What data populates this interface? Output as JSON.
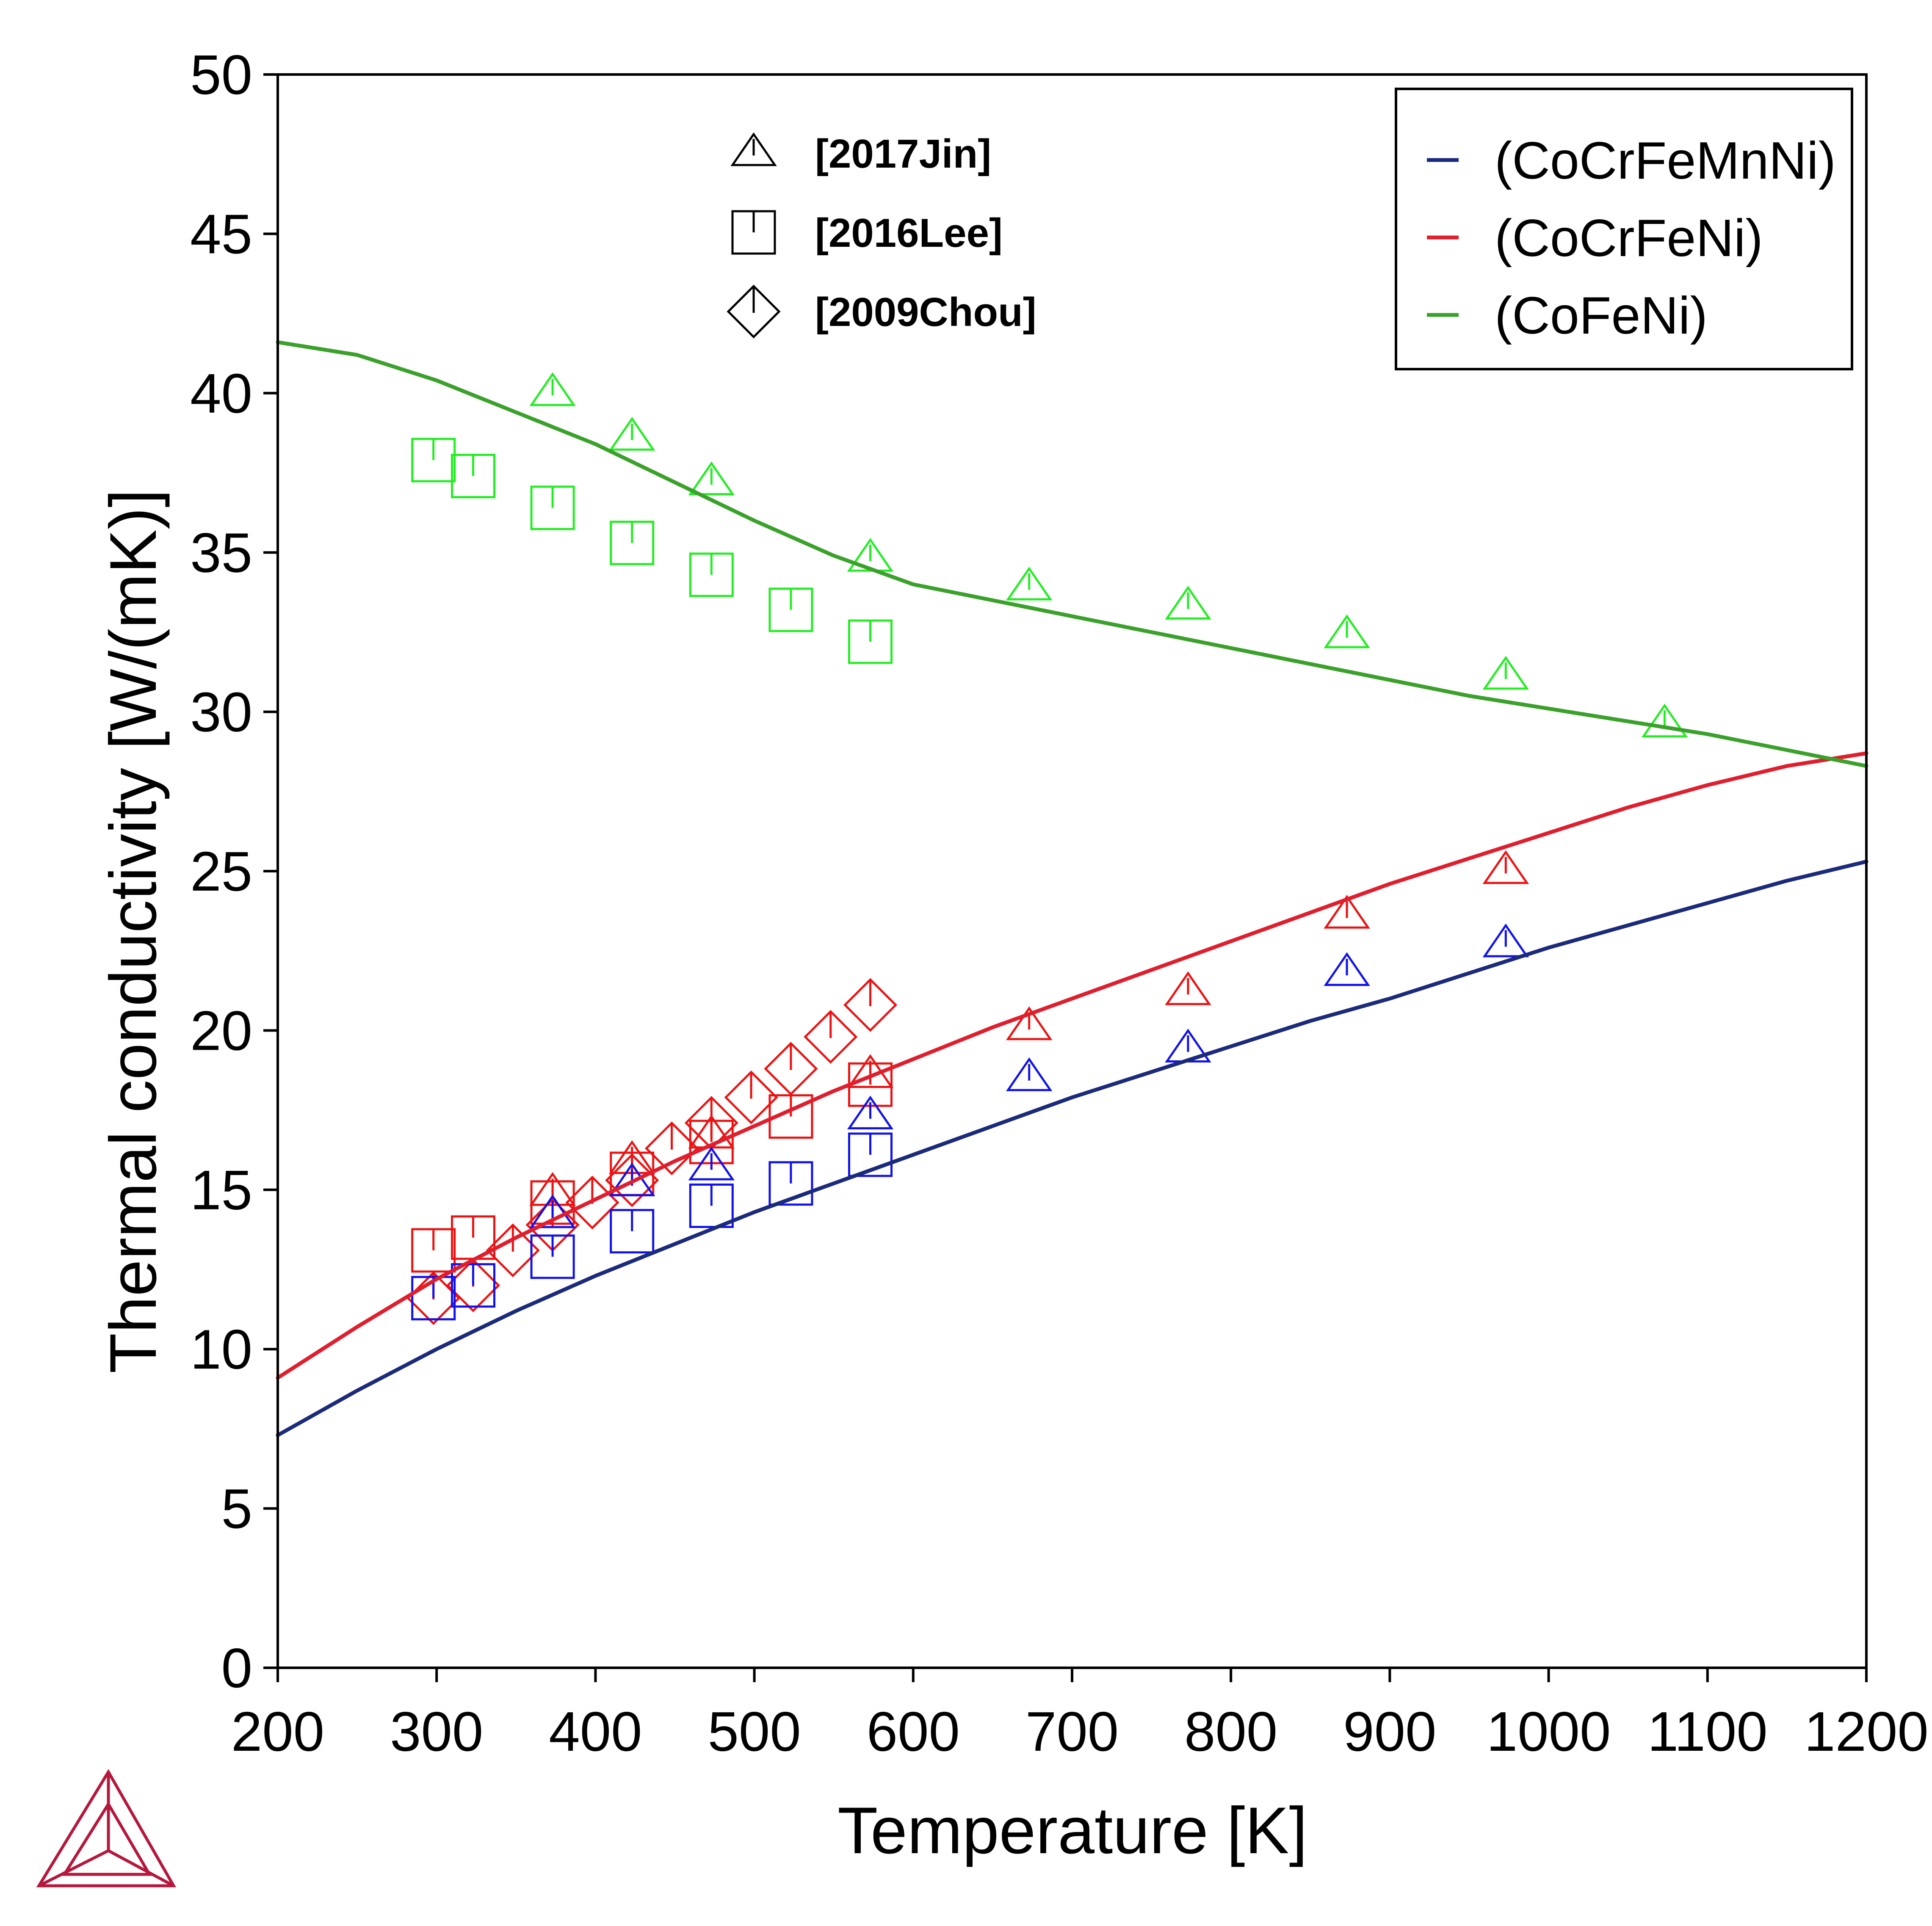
{
  "chart_data": {
    "type": "line",
    "xlabel": "Temperature [K]",
    "ylabel": "Thermal conductivity [W/(mK)]",
    "xlim": [
      200,
      1200
    ],
    "ylim": [
      0,
      50
    ],
    "x_ticks": [
      200,
      300,
      400,
      500,
      600,
      700,
      800,
      900,
      1000,
      1100,
      1200
    ],
    "y_ticks": [
      0,
      5,
      10,
      15,
      20,
      25,
      30,
      35,
      40,
      45,
      50
    ],
    "grid": false,
    "legend_position": "top-right",
    "series": [
      {
        "name": "(CoCrFeMnNi)",
        "color": "#1b2a7a",
        "x": [
          200,
          250,
          300,
          350,
          400,
          450,
          500,
          550,
          600,
          650,
          700,
          750,
          800,
          850,
          900,
          950,
          1000,
          1050,
          1100,
          1150,
          1200
        ],
        "y": [
          7.3,
          8.7,
          10.0,
          11.2,
          12.3,
          13.3,
          14.3,
          15.2,
          16.1,
          17.0,
          17.9,
          18.7,
          19.5,
          20.3,
          21.0,
          21.8,
          22.6,
          23.3,
          24.0,
          24.7,
          25.3
        ]
      },
      {
        "name": "(CoCrFeNi)",
        "color": "#e01e2d",
        "x": [
          200,
          250,
          300,
          350,
          400,
          450,
          500,
          550,
          600,
          650,
          700,
          750,
          800,
          850,
          900,
          950,
          1000,
          1050,
          1100,
          1150,
          1200
        ],
        "y": [
          9.1,
          10.7,
          12.2,
          13.5,
          14.7,
          15.9,
          17.0,
          18.1,
          19.1,
          20.1,
          21.0,
          21.9,
          22.8,
          23.7,
          24.6,
          25.4,
          26.2,
          27.0,
          27.7,
          28.3,
          28.7
        ]
      },
      {
        "name": "(CoFeNi)",
        "color": "#3aa12a",
        "x": [
          200,
          250,
          300,
          350,
          400,
          450,
          500,
          550,
          600,
          650,
          700,
          750,
          800,
          850,
          900,
          950,
          1000,
          1050,
          1100,
          1150,
          1200
        ],
        "y": [
          41.6,
          41.2,
          40.4,
          39.4,
          38.4,
          37.2,
          36.0,
          34.9,
          34.0,
          33.5,
          33.0,
          32.5,
          32.0,
          31.5,
          31.0,
          30.5,
          30.1,
          29.7,
          29.3,
          28.8,
          28.3
        ]
      }
    ],
    "experimental": [
      {
        "ref": "[2017Jin]",
        "marker": "triangle",
        "alloy": "(CoFeNi)",
        "color": "#22ee22",
        "points": [
          [
            373,
            40.0
          ],
          [
            423,
            38.6
          ],
          [
            473,
            37.2
          ],
          [
            573,
            34.8
          ],
          [
            673,
            33.9
          ],
          [
            773,
            33.3
          ],
          [
            873,
            32.4
          ],
          [
            973,
            31.1
          ],
          [
            1073,
            29.6
          ]
        ]
      },
      {
        "ref": "[2016Lee]",
        "marker": "square",
        "alloy": "(CoFeNi)",
        "color": "#22ee22",
        "points": [
          [
            298,
            37.9
          ],
          [
            323,
            37.4
          ],
          [
            373,
            36.4
          ],
          [
            423,
            35.3
          ],
          [
            473,
            34.3
          ],
          [
            523,
            33.2
          ],
          [
            573,
            32.2
          ]
        ]
      },
      {
        "ref": "[2017Jin]",
        "marker": "triangle",
        "alloy": "(CoCrFeNi)",
        "color": "#ee1111",
        "points": [
          [
            373,
            14.9
          ],
          [
            423,
            15.9
          ],
          [
            473,
            16.7
          ],
          [
            573,
            18.6
          ],
          [
            673,
            20.1
          ],
          [
            773,
            21.2
          ],
          [
            873,
            23.6
          ],
          [
            973,
            25.0
          ]
        ]
      },
      {
        "ref": "[2016Lee]",
        "marker": "square",
        "alloy": "(CoCrFeNi)",
        "color": "#ee1111",
        "points": [
          [
            298,
            13.1
          ],
          [
            323,
            13.5
          ],
          [
            373,
            14.6
          ],
          [
            423,
            15.5
          ],
          [
            473,
            16.5
          ],
          [
            523,
            17.3
          ],
          [
            573,
            18.3
          ]
        ]
      },
      {
        "ref": "[2009Chou]",
        "marker": "diamond",
        "alloy": "(CoCrFeNi)",
        "color": "#ee1111",
        "points": [
          [
            298,
            11.6
          ],
          [
            323,
            12.0
          ],
          [
            348,
            13.1
          ],
          [
            373,
            13.9
          ],
          [
            398,
            14.6
          ],
          [
            423,
            15.3
          ],
          [
            448,
            16.3
          ],
          [
            473,
            17.1
          ],
          [
            498,
            17.9
          ],
          [
            523,
            18.8
          ],
          [
            548,
            19.8
          ],
          [
            573,
            20.8
          ]
        ]
      },
      {
        "ref": "[2017Jin]",
        "marker": "triangle",
        "alloy": "(CoCrFeMnNi)",
        "color": "#1111ee",
        "points": [
          [
            373,
            14.2
          ],
          [
            423,
            15.2
          ],
          [
            473,
            15.7
          ],
          [
            573,
            17.3
          ],
          [
            673,
            18.5
          ],
          [
            773,
            19.4
          ],
          [
            873,
            21.8
          ],
          [
            973,
            22.7
          ]
        ]
      },
      {
        "ref": "[2016Lee]",
        "marker": "square",
        "alloy": "(CoCrFeMnNi)",
        "color": "#1111ee",
        "points": [
          [
            298,
            11.6
          ],
          [
            323,
            12.0
          ],
          [
            373,
            12.9
          ],
          [
            423,
            13.7
          ],
          [
            473,
            14.5
          ],
          [
            523,
            15.2
          ],
          [
            573,
            16.1
          ]
        ]
      }
    ],
    "marker_legend": [
      {
        "label": "[2017Jin]",
        "marker": "triangle"
      },
      {
        "label": "[2016Lee]",
        "marker": "square"
      },
      {
        "label": "[2009Chou]",
        "marker": "diamond"
      }
    ],
    "logo": "thermo-calc-triangle-logo",
    "colors": {
      "logo": "#b5173d",
      "axis": "#000000"
    }
  }
}
